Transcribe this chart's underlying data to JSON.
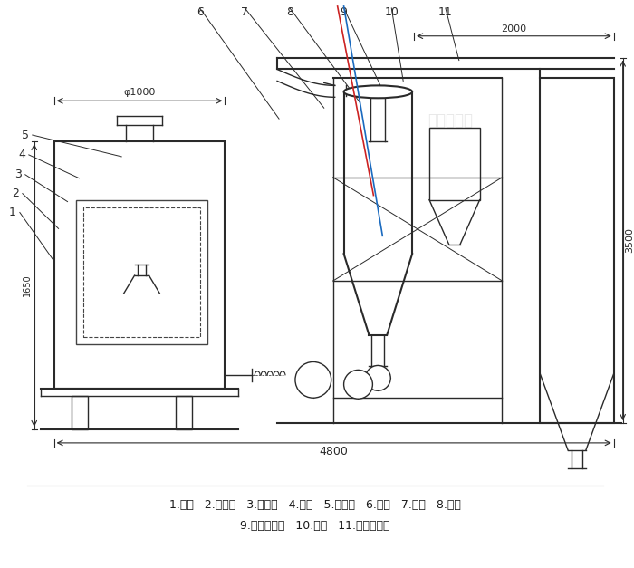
{
  "title": "",
  "bg_color": "#ffffff",
  "line_color": "#2a2a2a",
  "dim_color": "#2a2a2a",
  "blue_line_color": "#1a6abf",
  "red_line_color": "#cc2222",
  "label_line1": "1.底座   2.回风道   3.激振器   4.筛网   5.进料斗   6.风机   7.绞龙   8.料仓",
  "label_line2": "9.旋风分离器   10.支架   11.布袋除尘器",
  "watermark": "达力汉机械",
  "dim_2000": "2000",
  "dim_3500": "3500",
  "dim_4800": "4800",
  "dim_phi1000": "φ1000",
  "dim_1650": "1650",
  "labels_top": [
    "6",
    "7",
    "8",
    "9",
    "10",
    "11"
  ],
  "labels_left": [
    "5",
    "4",
    "3",
    "2",
    "1"
  ]
}
